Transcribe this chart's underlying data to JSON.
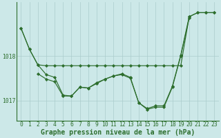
{
  "background_color": "#cce8e8",
  "grid_color": "#aacccc",
  "line_color": "#2d6e2d",
  "marker_color": "#2d6e2d",
  "title": "Graphe pression niveau de la mer (hPa)",
  "xlim": [
    -0.5,
    23.5
  ],
  "ylim": [
    1016.55,
    1019.2
  ],
  "yticks": [
    1017,
    1018
  ],
  "xticks": [
    0,
    1,
    2,
    3,
    4,
    5,
    6,
    7,
    8,
    9,
    10,
    11,
    12,
    13,
    14,
    15,
    16,
    17,
    18,
    19,
    20,
    21,
    22,
    23
  ],
  "s1_y": [
    1018.62,
    1018.15,
    1017.8,
    1017.58,
    1017.52,
    1017.12,
    1017.1,
    1017.3,
    1017.28,
    1017.4,
    1017.48,
    1017.55,
    1017.6,
    1017.52,
    1016.95,
    1016.82,
    1016.88,
    1016.88,
    1017.32,
    1018.02,
    1018.88,
    1018.97,
    1018.97,
    1018.97
  ],
  "s2_y": [
    1018.62,
    1018.15,
    1017.8,
    1017.78,
    1017.78,
    1017.78,
    1017.78,
    1017.78,
    1017.78,
    1017.78,
    1017.78,
    1017.78,
    1017.78,
    1017.78,
    1017.78,
    1017.78,
    1017.78,
    1017.78,
    1017.78,
    1017.78,
    1018.88,
    1018.97,
    1018.97,
    1018.97
  ],
  "s3_x": [
    2,
    3,
    4,
    5,
    6,
    7,
    8,
    9,
    10,
    11,
    12,
    13,
    14,
    15,
    16,
    17,
    18,
    19,
    20
  ],
  "s3_y": [
    1017.6,
    1017.48,
    1017.42,
    1017.1,
    1017.1,
    1017.3,
    1017.28,
    1017.38,
    1017.48,
    1017.55,
    1017.58,
    1017.5,
    1016.95,
    1016.8,
    1016.85,
    1016.85,
    1017.3,
    1018.0,
    1018.85
  ],
  "title_fontsize": 7.0,
  "tick_fontsize": 5.8
}
